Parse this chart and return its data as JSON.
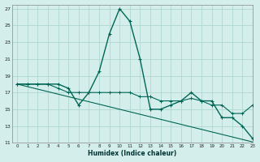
{
  "xlabel": "Humidex (Indice chaleur)",
  "bg_color": "#d4efeb",
  "grid_color": "#b0d8d0",
  "line_color": "#006655",
  "xlim": [
    -0.5,
    23
  ],
  "ylim": [
    11,
    27.5
  ],
  "xticks": [
    0,
    1,
    2,
    3,
    4,
    5,
    6,
    7,
    8,
    9,
    10,
    11,
    12,
    13,
    14,
    15,
    16,
    17,
    18,
    19,
    20,
    21,
    22,
    23
  ],
  "yticks": [
    11,
    13,
    15,
    17,
    19,
    21,
    23,
    25,
    27
  ],
  "line1_x": [
    0,
    1,
    2,
    3,
    4,
    5,
    6,
    7,
    8,
    9,
    10,
    11,
    12,
    13,
    14,
    15,
    16,
    17,
    18,
    19,
    20,
    21,
    22,
    23
  ],
  "line1_y": [
    18.0,
    18.0,
    18.0,
    18.0,
    18.0,
    17.5,
    15.5,
    17.0,
    19.5,
    24.0,
    27.0,
    25.5,
    21.0,
    15.0,
    15.0,
    15.5,
    16.0,
    17.0,
    16.0,
    16.0,
    14.0,
    14.0,
    13.0,
    11.5
  ],
  "line2_x": [
    0,
    1,
    2,
    3,
    4,
    5,
    6,
    7,
    8,
    9,
    10,
    11,
    12,
    13,
    14,
    15,
    16,
    17,
    18,
    19,
    20,
    21,
    22,
    23
  ],
  "line2_y": [
    18.0,
    17.7,
    17.4,
    17.1,
    16.8,
    16.5,
    16.2,
    15.9,
    15.6,
    15.3,
    15.0,
    14.7,
    14.4,
    14.1,
    13.8,
    13.5,
    13.2,
    12.9,
    12.6,
    12.3,
    12.0,
    11.7,
    11.4,
    11.1
  ],
  "line3_x": [
    0,
    1,
    2,
    3,
    4,
    5,
    6,
    7,
    8,
    9,
    10,
    11,
    12,
    13,
    14,
    15,
    16,
    17,
    18,
    19,
    20,
    21,
    22,
    23
  ],
  "line3_y": [
    18.0,
    18.0,
    18.0,
    18.0,
    17.5,
    17.0,
    17.0,
    17.0,
    17.0,
    17.0,
    17.0,
    17.0,
    16.5,
    16.5,
    16.0,
    16.0,
    16.0,
    16.3,
    16.0,
    15.5,
    15.5,
    14.5,
    14.5,
    15.5
  ]
}
